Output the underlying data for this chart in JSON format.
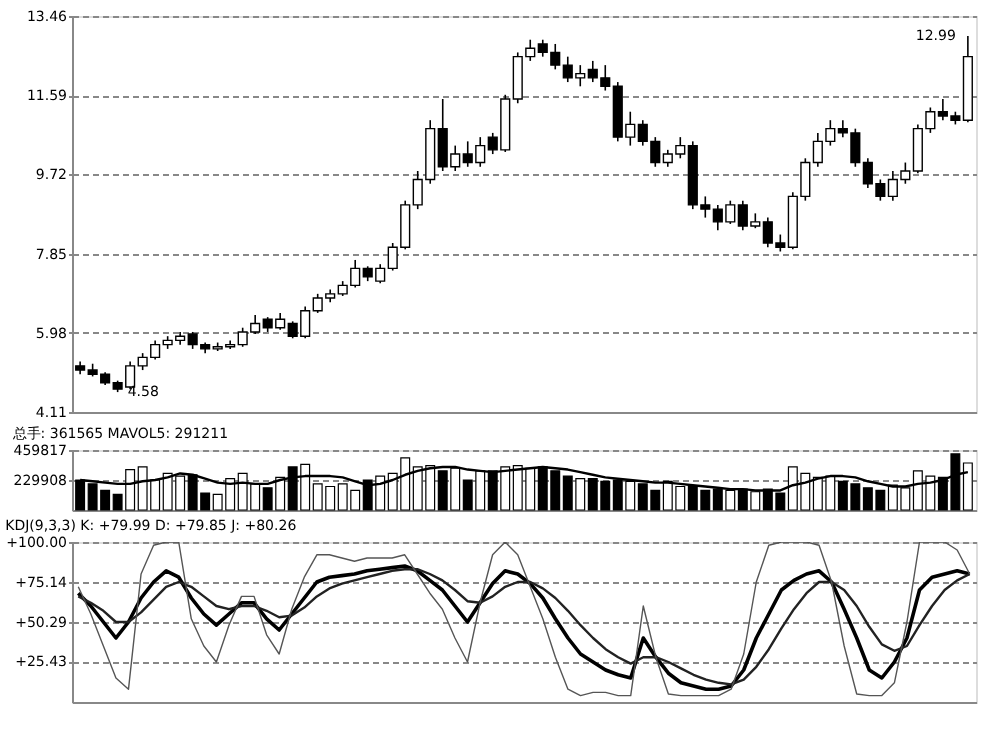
{
  "chart_data": [
    {
      "type": "candlestick",
      "categories": [
        null,
        null,
        null,
        null,
        null,
        null,
        null,
        null,
        null,
        null,
        null,
        null,
        null,
        null,
        null,
        null,
        null,
        null,
        null,
        null,
        null,
        null,
        null,
        null,
        null,
        null,
        null,
        null,
        null,
        null,
        null,
        null,
        null,
        null,
        null,
        null,
        null,
        null,
        null,
        null,
        null,
        null,
        null,
        null,
        null,
        null,
        null,
        null,
        null,
        null,
        null,
        null,
        null,
        null,
        null,
        null,
        null,
        null,
        null,
        null,
        null,
        null,
        null,
        null,
        null,
        null,
        null,
        null,
        null,
        null,
        null,
        null
      ],
      "ohlc": [
        [
          5.2,
          5.3,
          5.0,
          5.1
        ],
        [
          5.1,
          5.25,
          4.95,
          5.0
        ],
        [
          5.0,
          5.05,
          4.75,
          4.8
        ],
        [
          4.8,
          4.85,
          4.58,
          4.65
        ],
        [
          4.7,
          5.3,
          4.65,
          5.2
        ],
        [
          5.2,
          5.5,
          5.1,
          5.4
        ],
        [
          5.4,
          5.8,
          5.35,
          5.7
        ],
        [
          5.7,
          5.9,
          5.6,
          5.8
        ],
        [
          5.8,
          6.0,
          5.7,
          5.9
        ],
        [
          5.95,
          6.0,
          5.6,
          5.7
        ],
        [
          5.7,
          5.75,
          5.5,
          5.6
        ],
        [
          5.6,
          5.75,
          5.55,
          5.65
        ],
        [
          5.65,
          5.8,
          5.6,
          5.7
        ],
        [
          5.7,
          6.1,
          5.65,
          6.0
        ],
        [
          6.0,
          6.4,
          5.95,
          6.2
        ],
        [
          6.3,
          6.35,
          6.0,
          6.1
        ],
        [
          6.1,
          6.45,
          6.05,
          6.3
        ],
        [
          6.2,
          6.25,
          5.85,
          5.9
        ],
        [
          5.9,
          6.6,
          5.85,
          6.5
        ],
        [
          6.5,
          6.9,
          6.45,
          6.8
        ],
        [
          6.8,
          7.0,
          6.7,
          6.9
        ],
        [
          6.9,
          7.2,
          6.85,
          7.1
        ],
        [
          7.1,
          7.7,
          7.05,
          7.5
        ],
        [
          7.5,
          7.55,
          7.2,
          7.3
        ],
        [
          7.2,
          7.6,
          7.15,
          7.5
        ],
        [
          7.5,
          8.1,
          7.45,
          8.0
        ],
        [
          8.0,
          9.1,
          7.95,
          9.0
        ],
        [
          9.0,
          9.8,
          8.9,
          9.6
        ],
        [
          9.6,
          11.0,
          9.5,
          10.8
        ],
        [
          10.8,
          11.5,
          9.8,
          9.9
        ],
        [
          9.9,
          10.4,
          9.8,
          10.2
        ],
        [
          10.2,
          10.5,
          9.9,
          10.0
        ],
        [
          10.0,
          10.6,
          9.9,
          10.4
        ],
        [
          10.6,
          10.7,
          10.2,
          10.3
        ],
        [
          10.3,
          11.6,
          10.25,
          11.5
        ],
        [
          11.5,
          12.6,
          11.4,
          12.5
        ],
        [
          12.5,
          12.9,
          12.4,
          12.7
        ],
        [
          12.8,
          12.9,
          12.5,
          12.6
        ],
        [
          12.6,
          12.8,
          12.2,
          12.3
        ],
        [
          12.3,
          12.5,
          11.9,
          12.0
        ],
        [
          12.0,
          12.3,
          11.8,
          12.1
        ],
        [
          12.2,
          12.4,
          11.9,
          12.0
        ],
        [
          12.0,
          12.3,
          11.7,
          11.8
        ],
        [
          11.8,
          11.9,
          10.5,
          10.6
        ],
        [
          10.6,
          11.2,
          10.4,
          10.9
        ],
        [
          10.9,
          11.0,
          10.4,
          10.5
        ],
        [
          10.5,
          10.6,
          9.9,
          10.0
        ],
        [
          10.0,
          10.3,
          9.9,
          10.2
        ],
        [
          10.2,
          10.6,
          10.1,
          10.4
        ],
        [
          10.4,
          10.5,
          8.9,
          9.0
        ],
        [
          9.0,
          9.2,
          8.7,
          8.9
        ],
        [
          8.9,
          9.0,
          8.4,
          8.6
        ],
        [
          8.6,
          9.1,
          8.55,
          9.0
        ],
        [
          9.0,
          9.1,
          8.4,
          8.5
        ],
        [
          8.5,
          8.8,
          8.45,
          8.6
        ],
        [
          8.6,
          8.7,
          8.0,
          8.1
        ],
        [
          8.1,
          8.3,
          7.9,
          8.0
        ],
        [
          8.0,
          9.3,
          7.95,
          9.2
        ],
        [
          9.2,
          10.1,
          9.1,
          10.0
        ],
        [
          10.0,
          10.7,
          9.9,
          10.5
        ],
        [
          10.5,
          11.0,
          10.4,
          10.8
        ],
        [
          10.8,
          11.0,
          10.6,
          10.7
        ],
        [
          10.7,
          10.8,
          9.9,
          10.0
        ],
        [
          10.0,
          10.1,
          9.4,
          9.5
        ],
        [
          9.5,
          9.6,
          9.1,
          9.2
        ],
        [
          9.2,
          9.8,
          9.1,
          9.6
        ],
        [
          9.6,
          10.0,
          9.5,
          9.8
        ],
        [
          9.8,
          10.9,
          9.75,
          10.8
        ],
        [
          10.8,
          11.3,
          10.7,
          11.2
        ],
        [
          11.2,
          11.5,
          11.0,
          11.1
        ],
        [
          11.1,
          11.2,
          10.9,
          11.0
        ],
        [
          11.0,
          12.99,
          10.95,
          12.5
        ]
      ],
      "colors": [
        "#000000",
        "#000000",
        "#000000",
        "#000000",
        "#ffffff",
        "#ffffff",
        "#ffffff",
        "#ffffff",
        "#ffffff",
        "#000000",
        "#000000",
        "#ffffff",
        "#ffffff",
        "#ffffff",
        "#ffffff",
        "#000000",
        "#ffffff",
        "#000000",
        "#ffffff",
        "#ffffff",
        "#ffffff",
        "#ffffff",
        "#ffffff",
        "#000000",
        "#ffffff",
        "#ffffff",
        "#ffffff",
        "#ffffff",
        "#ffffff",
        "#000000",
        "#ffffff",
        "#000000",
        "#ffffff",
        "#000000",
        "#ffffff",
        "#ffffff",
        "#ffffff",
        "#000000",
        "#000000",
        "#000000",
        "#ffffff",
        "#000000",
        "#000000",
        "#000000",
        "#ffffff",
        "#000000",
        "#000000",
        "#ffffff",
        "#ffffff",
        "#000000",
        "#000000",
        "#000000",
        "#ffffff",
        "#000000",
        "#ffffff",
        "#000000",
        "#000000",
        "#ffffff",
        "#ffffff",
        "#ffffff",
        "#ffffff",
        "#000000",
        "#000000",
        "#000000",
        "#000000",
        "#ffffff",
        "#ffffff",
        "#ffffff",
        "#ffffff",
        "#000000",
        "#000000",
        "#ffffff"
      ],
      "ylim": [
        4.11,
        13.46
      ],
      "yticks": [
        4.11,
        5.98,
        7.85,
        9.72,
        11.59,
        13.46
      ],
      "grid": "y",
      "tick_labels": "y",
      "annotations": [
        "4.58",
        "12.99"
      ]
    },
    {
      "type": "bar",
      "title": "总手: 361565 MAVOL5: 291211",
      "categories": [
        null,
        null,
        null,
        null,
        null,
        null,
        null,
        null,
        null,
        null,
        null,
        null,
        null,
        null,
        null,
        null,
        null,
        null,
        null,
        null,
        null,
        null,
        null,
        null,
        null,
        null,
        null,
        null,
        null,
        null,
        null,
        null,
        null,
        null,
        null,
        null,
        null,
        null,
        null,
        null,
        null,
        null,
        null,
        null,
        null,
        null,
        null,
        null,
        null,
        null,
        null,
        null,
        null,
        null,
        null,
        null,
        null,
        null,
        null,
        null,
        null,
        null,
        null,
        null,
        null,
        null,
        null,
        null,
        null,
        null,
        null,
        null
      ],
      "series": [
        {
          "type": "bar",
          "colors": [
            "#000000",
            "#000000",
            "#000000",
            "#000000",
            "#ffffff",
            "#ffffff",
            "#ffffff",
            "#ffffff",
            "#ffffff",
            "#000000",
            "#000000",
            "#ffffff",
            "#ffffff",
            "#ffffff",
            "#ffffff",
            "#000000",
            "#ffffff",
            "#000000",
            "#ffffff",
            "#ffffff",
            "#ffffff",
            "#ffffff",
            "#ffffff",
            "#000000",
            "#ffffff",
            "#ffffff",
            "#ffffff",
            "#ffffff",
            "#ffffff",
            "#000000",
            "#ffffff",
            "#000000",
            "#ffffff",
            "#000000",
            "#ffffff",
            "#ffffff",
            "#ffffff",
            "#000000",
            "#000000",
            "#000000",
            "#ffffff",
            "#000000",
            "#000000",
            "#000000",
            "#ffffff",
            "#000000",
            "#000000",
            "#ffffff",
            "#ffffff",
            "#000000",
            "#000000",
            "#000000",
            "#ffffff",
            "#000000",
            "#ffffff",
            "#000000",
            "#000000",
            "#ffffff",
            "#ffffff",
            "#ffffff",
            "#ffffff",
            "#000000",
            "#000000",
            "#000000",
            "#000000",
            "#ffffff",
            "#ffffff",
            "#ffffff",
            "#ffffff",
            "#000000",
            "#000000",
            "#ffffff"
          ],
          "values": [
            230000,
            200000,
            150000,
            120000,
            310000,
            330000,
            230000,
            280000,
            260000,
            270000,
            130000,
            120000,
            240000,
            280000,
            200000,
            170000,
            250000,
            330000,
            350000,
            200000,
            180000,
            200000,
            150000,
            230000,
            260000,
            280000,
            400000,
            330000,
            340000,
            300000,
            320000,
            230000,
            300000,
            300000,
            330000,
            340000,
            320000,
            330000,
            300000,
            260000,
            240000,
            240000,
            220000,
            230000,
            220000,
            200000,
            150000,
            220000,
            180000,
            180000,
            150000,
            160000,
            150000,
            160000,
            140000,
            160000,
            130000,
            330000,
            280000,
            250000,
            260000,
            220000,
            200000,
            170000,
            150000,
            190000,
            170000,
            300000,
            260000,
            250000,
            430000,
            360000
          ]
        },
        {
          "type": "line",
          "color": "#000000",
          "values": [
            230000,
            220000,
            210000,
            200000,
            200000,
            220000,
            230000,
            250000,
            280000,
            270000,
            240000,
            210000,
            200000,
            210000,
            200000,
            200000,
            230000,
            250000,
            260000,
            260000,
            260000,
            250000,
            220000,
            190000,
            200000,
            230000,
            270000,
            300000,
            320000,
            330000,
            330000,
            310000,
            300000,
            290000,
            300000,
            310000,
            320000,
            330000,
            320000,
            310000,
            290000,
            270000,
            250000,
            240000,
            230000,
            220000,
            210000,
            210000,
            200000,
            190000,
            180000,
            170000,
            160000,
            160000,
            150000,
            150000,
            150000,
            190000,
            210000,
            240000,
            260000,
            260000,
            250000,
            220000,
            200000,
            180000,
            180000,
            200000,
            210000,
            230000,
            270000,
            290000
          ]
        }
      ],
      "ylim": [
        0,
        459817
      ],
      "yticks": [
        229908,
        459817
      ],
      "grid": "y",
      "tick_labels": "y"
    },
    {
      "type": "line",
      "title": "KDJ(9,3,3) K: +79.99 D: +79.85 J: +80.26",
      "categories": [
        null,
        null,
        null,
        null,
        null,
        null,
        null,
        null,
        null,
        null,
        null,
        null,
        null,
        null,
        null,
        null,
        null,
        null,
        null,
        null,
        null,
        null,
        null,
        null,
        null,
        null,
        null,
        null,
        null,
        null,
        null,
        null,
        null,
        null,
        null,
        null,
        null,
        null,
        null,
        null,
        null,
        null,
        null,
        null,
        null,
        null,
        null,
        null,
        null,
        null,
        null,
        null,
        null,
        null,
        null,
        null,
        null,
        null,
        null,
        null,
        null,
        null,
        null,
        null,
        null,
        null,
        null,
        null,
        null,
        null,
        null,
        null
      ],
      "series": [
        {
          "color": "#000000",
          "values": [
            68,
            60,
            50,
            40,
            50,
            65,
            75,
            82,
            78,
            65,
            55,
            48,
            55,
            62,
            62,
            52,
            45,
            55,
            65,
            75,
            78,
            79,
            80,
            82,
            83,
            84,
            85,
            82,
            76,
            70,
            60,
            50,
            62,
            74,
            82,
            80,
            74,
            65,
            52,
            40,
            30,
            25,
            20,
            17,
            15,
            40,
            28,
            18,
            12,
            10,
            8,
            8,
            10,
            20,
            40,
            55,
            70,
            76,
            80,
            82,
            75,
            58,
            40,
            20,
            15,
            25,
            40,
            70,
            78,
            80,
            82,
            80
          ]
        },
        {
          "color": "#222222",
          "values": [
            66,
            62,
            57,
            50,
            50,
            56,
            64,
            72,
            75,
            72,
            66,
            60,
            58,
            60,
            60,
            57,
            53,
            54,
            59,
            66,
            71,
            74,
            76,
            78,
            80,
            82,
            83,
            83,
            80,
            76,
            70,
            63,
            62,
            66,
            72,
            75,
            75,
            71,
            65,
            57,
            48,
            40,
            33,
            28,
            24,
            28,
            28,
            25,
            21,
            17,
            14,
            12,
            11,
            14,
            22,
            33,
            46,
            58,
            68,
            75,
            75,
            70,
            60,
            47,
            36,
            32,
            35,
            48,
            60,
            70,
            76,
            80
          ]
        },
        {
          "color": "#555555",
          "values": [
            72,
            55,
            35,
            15,
            8,
            80,
            98,
            100,
            100,
            52,
            35,
            25,
            48,
            66,
            66,
            42,
            30,
            58,
            78,
            92,
            92,
            90,
            88,
            90,
            90,
            90,
            92,
            80,
            68,
            58,
            40,
            25,
            62,
            92,
            100,
            92,
            72,
            52,
            28,
            8,
            4,
            6,
            6,
            4,
            4,
            60,
            28,
            5,
            4,
            4,
            4,
            4,
            8,
            30,
            75,
            98,
            100,
            100,
            100,
            98,
            75,
            35,
            5,
            4,
            4,
            12,
            50,
            100,
            100,
            100,
            95,
            80
          ]
        }
      ],
      "ylim": [
        0,
        100
      ],
      "yticks": [
        {
          "value": 25.43,
          "label": "+25.43"
        },
        {
          "value": 50.29,
          "label": "+50.29"
        },
        {
          "value": 75.14,
          "label": "+75.14"
        },
        {
          "value": 100,
          "label": "+100.00"
        }
      ],
      "grid": "y",
      "tick_labels": "y"
    }
  ]
}
